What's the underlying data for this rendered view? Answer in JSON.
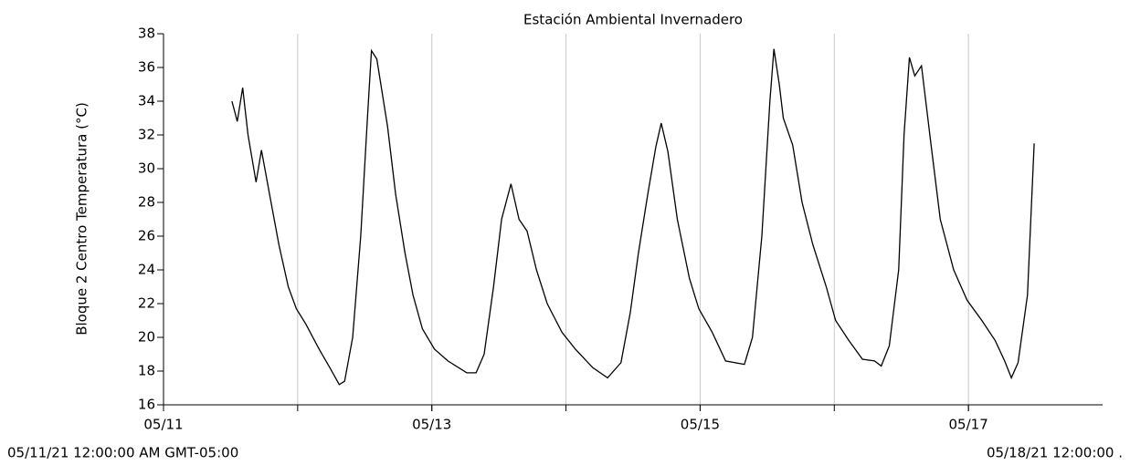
{
  "chart_data": {
    "type": "line",
    "title": "Estación Ambiental Invernadero",
    "y_label": "Bloque 2 Centro Temperatura (°C)",
    "start_label": "05/11/21 12:00:00 AM GMT-05:00",
    "end_label": "05/18/21 12:00:00 .",
    "xlim": [
      0,
      7
    ],
    "xticks": [
      {
        "value": 0,
        "label": "05/11"
      },
      {
        "value": 2,
        "label": "05/13"
      },
      {
        "value": 4,
        "label": "05/15"
      },
      {
        "value": 6,
        "label": "05/17"
      }
    ],
    "xgrid": [
      1,
      2,
      3,
      4,
      5,
      6
    ],
    "ylim": [
      16,
      38
    ],
    "yticks": [
      16,
      18,
      20,
      22,
      24,
      26,
      28,
      30,
      32,
      34,
      36,
      38
    ],
    "grid": true,
    "series": [
      {
        "name": "Bloque 2 Centro Temperatura",
        "color": "#000000",
        "x": [
          0.51,
          0.55,
          0.59,
          0.63,
          0.69,
          0.73,
          0.79,
          0.86,
          0.93,
          0.99,
          1.06,
          1.16,
          1.24,
          1.31,
          1.35,
          1.41,
          1.47,
          1.52,
          1.55,
          1.59,
          1.63,
          1.67,
          1.73,
          1.8,
          1.86,
          1.93,
          2.02,
          2.12,
          2.26,
          2.33,
          2.39,
          2.46,
          2.52,
          2.59,
          2.65,
          2.71,
          2.78,
          2.86,
          2.97,
          3.07,
          3.2,
          3.31,
          3.41,
          3.48,
          3.54,
          3.61,
          3.67,
          3.71,
          3.76,
          3.83,
          3.92,
          3.99,
          4.09,
          4.19,
          4.33,
          4.39,
          4.46,
          4.52,
          4.55,
          4.59,
          4.62,
          4.69,
          4.76,
          4.84,
          4.94,
          5.01,
          5.11,
          5.21,
          5.3,
          5.35,
          5.41,
          5.48,
          5.52,
          5.56,
          5.6,
          5.65,
          5.72,
          5.79,
          5.89,
          5.99,
          6.1,
          6.2,
          6.27,
          6.32,
          6.37,
          6.44,
          6.49
        ],
        "values": [
          34.0,
          32.8,
          34.8,
          32,
          29.2,
          31.1,
          28.5,
          25.5,
          23,
          21.7,
          20.8,
          19.3,
          18.2,
          17.2,
          17.4,
          20,
          26,
          33,
          37,
          36.5,
          34.5,
          32.5,
          28.5,
          25,
          22.5,
          20.5,
          19.3,
          18.6,
          17.9,
          17.9,
          19,
          23,
          27,
          29.1,
          27,
          26.3,
          24,
          22,
          20.3,
          19.3,
          18.2,
          17.6,
          18.5,
          21.5,
          25,
          28.5,
          31.3,
          32.7,
          31,
          27,
          23.5,
          21.7,
          20.3,
          18.6,
          18.4,
          20,
          26,
          34,
          37.1,
          35,
          33,
          31.4,
          28,
          25.5,
          23,
          21,
          19.8,
          18.7,
          18.6,
          18.3,
          19.5,
          24,
          32,
          36.6,
          35.5,
          36.1,
          31.5,
          27,
          24,
          22.2,
          21,
          19.8,
          18.6,
          17.6,
          18.5,
          22.5,
          31.5
        ]
      }
    ]
  }
}
